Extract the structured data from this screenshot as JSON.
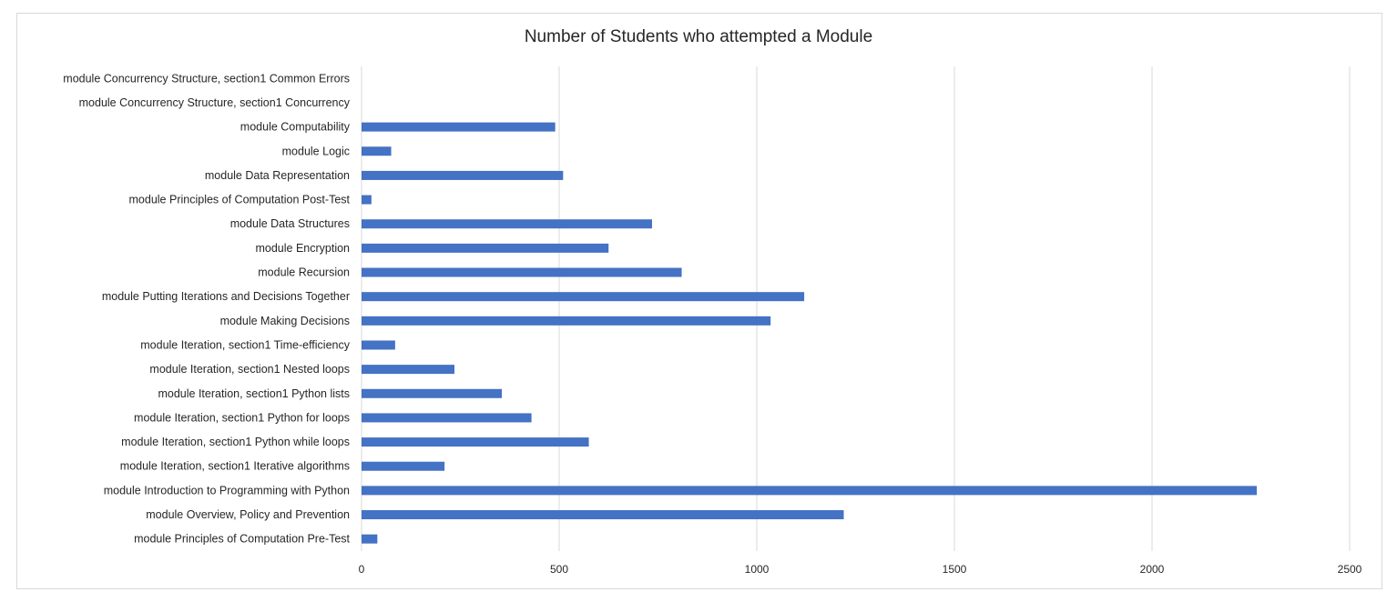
{
  "chart_data": {
    "type": "bar",
    "orientation": "horizontal",
    "title": "Number of Students who attempted a Module",
    "xlabel": "",
    "ylabel": "",
    "xlim": [
      0,
      2500
    ],
    "xticks": [
      0,
      500,
      1000,
      1500,
      2000,
      2500
    ],
    "grid": true,
    "legend": "none",
    "bar_color": "#4472c4",
    "gridline_color": "#d9d9d9",
    "categories": [
      "module Concurrency Structure, section1 Common Errors",
      "module Concurrency Structure, section1 Concurrency",
      "module Computability",
      "module Logic",
      "module Data Representation",
      "module Principles of Computation Post-Test",
      "module Data Structures",
      "module Encryption",
      "module Recursion",
      "module Putting Iterations and Decisions Together",
      "module Making Decisions",
      "module Iteration, section1 Time-efficiency",
      "module Iteration, section1 Nested loops",
      "module Iteration, section1 Python lists",
      "module Iteration, section1 Python for loops",
      "module Iteration, section1 Python while loops",
      "module Iteration, section1 Iterative algorithms",
      "module Introduction to Programming with Python",
      "module Overview, Policy and Prevention",
      "module Principles of Computation Pre-Test"
    ],
    "values": [
      0,
      0,
      490,
      75,
      510,
      25,
      735,
      625,
      810,
      1120,
      1035,
      85,
      235,
      355,
      430,
      575,
      210,
      2265,
      1220,
      40
    ]
  }
}
